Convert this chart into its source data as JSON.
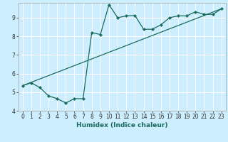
{
  "xlabel": "Humidex (Indice chaleur)",
  "bg_color": "#cceeff",
  "line_color": "#1a6b5a",
  "grid_color": "#ffffff",
  "spine_color": "#aaaaaa",
  "xlim": [
    -0.5,
    23.5
  ],
  "ylim": [
    4.0,
    9.8
  ],
  "xticks": [
    0,
    1,
    2,
    3,
    4,
    5,
    6,
    7,
    8,
    9,
    10,
    11,
    12,
    13,
    14,
    15,
    16,
    17,
    18,
    19,
    20,
    21,
    22,
    23
  ],
  "yticks": [
    4,
    5,
    6,
    7,
    8,
    9
  ],
  "line1_x": [
    0,
    1,
    2,
    3,
    4,
    5,
    6,
    7,
    8,
    9,
    10,
    11,
    12,
    13,
    14,
    15,
    16,
    17,
    18,
    19,
    20,
    21,
    22,
    23
  ],
  "line1_y": [
    5.35,
    5.5,
    5.25,
    4.8,
    4.65,
    4.42,
    4.65,
    4.65,
    8.2,
    8.1,
    9.7,
    9.0,
    9.1,
    9.12,
    8.38,
    8.38,
    8.62,
    9.0,
    9.1,
    9.1,
    9.32,
    9.18,
    9.18,
    9.48
  ],
  "line2_x": [
    0,
    23
  ],
  "line2_y": [
    5.35,
    9.48
  ]
}
